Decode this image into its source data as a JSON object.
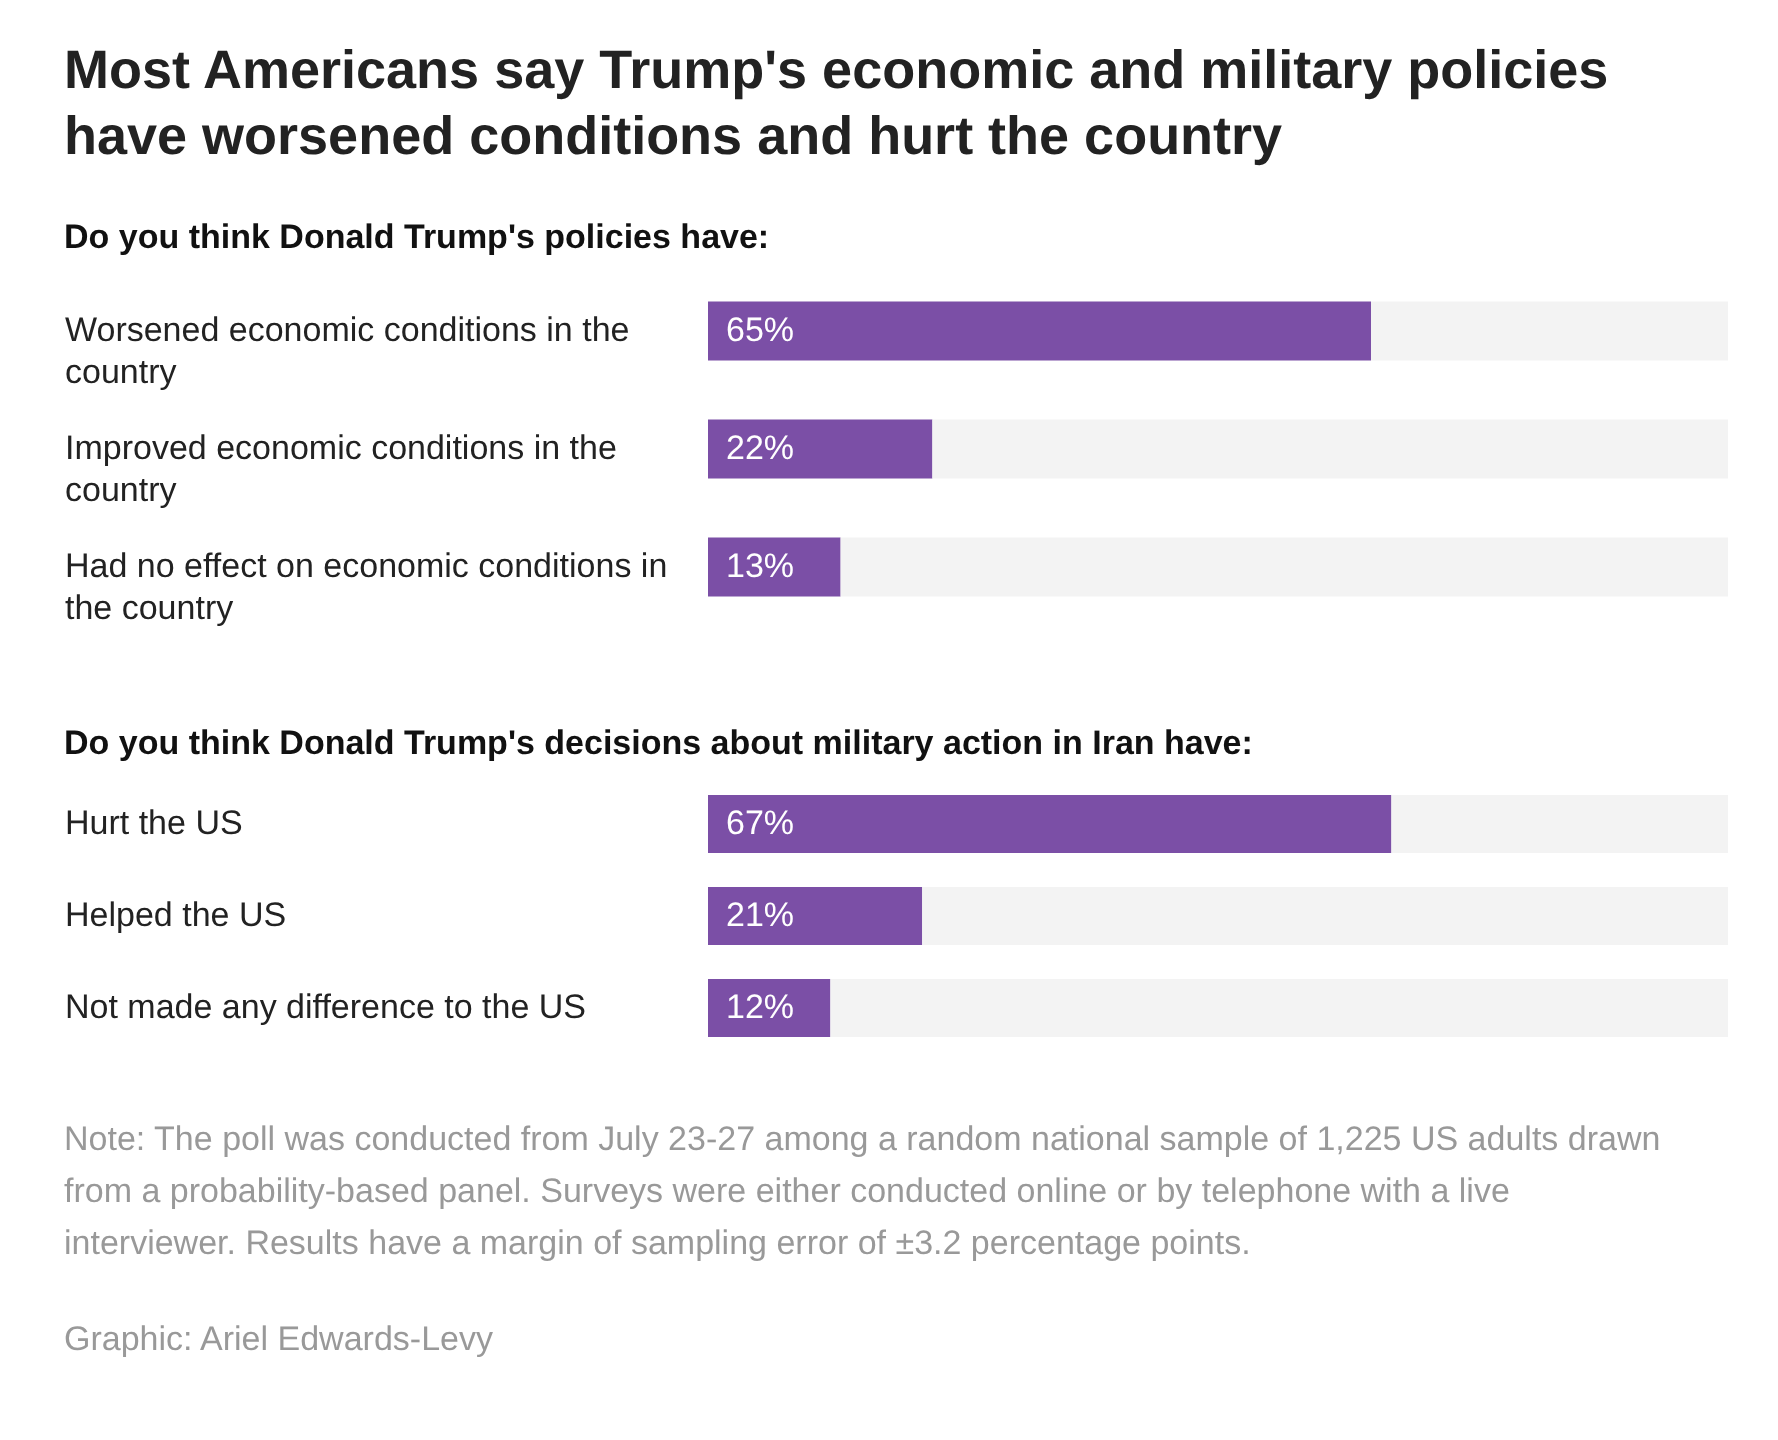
{
  "chart_data": [
    {
      "type": "bar",
      "orientation": "horizontal",
      "stacked": true,
      "title": "Most Americans say Trump's economic and military policies have worsened conditions and hurt the country",
      "subtitle": "Do you think Donald Trump's policies have:",
      "categories": [
        "Worsened economic conditions in the country",
        "Improved economic conditions in the country",
        "Had no effect on economic conditions in the country"
      ],
      "series": [
        {
          "color": "#7b4fa6",
          "values": [
            65,
            22,
            13
          ],
          "value_labels": [
            "65%",
            "22%",
            "13%"
          ]
        },
        {
          "color": "#f3f3f3",
          "values": [
            35,
            78,
            87
          ]
        }
      ],
      "xlim": [
        0,
        100
      ],
      "tick_labels": "y"
    },
    {
      "type": "bar",
      "orientation": "horizontal",
      "stacked": true,
      "subtitle": "Do you think Donald Trump's decisions about military action in Iran have:",
      "categories": [
        "Hurt the US",
        "Helped the US",
        "Not made any difference to the US"
      ],
      "series": [
        {
          "color": "#7b4fa6",
          "values": [
            67,
            21,
            12
          ],
          "value_labels": [
            "67%",
            "21%",
            "12%"
          ]
        },
        {
          "color": "#f3f3f3",
          "values": [
            33,
            79,
            88
          ]
        }
      ],
      "xlim": [
        0,
        100
      ],
      "tick_labels": "y",
      "annotations": [
        "Note: The poll was conducted from July 23-27 among a random national sample of 1,225 US adults drawn from a probability-based panel. Surveys were either conducted online or by telephone with a live interviewer. Results have a margin of sampling error of ±3.2 percentage points.",
        "Graphic: Ariel Edwards-Levy"
      ]
    }
  ]
}
